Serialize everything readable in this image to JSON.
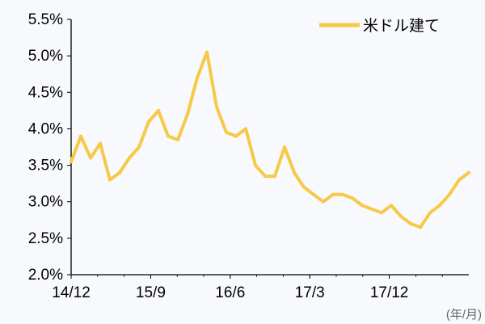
{
  "chart_data": {
    "type": "line",
    "x_unit_label": "(年/月)",
    "x_ticks": [
      "14/12",
      "15/9",
      "16/6",
      "17/3",
      "17/12"
    ],
    "y_ticks": [
      "5.5%",
      "5.0%",
      "4.5%",
      "4.0%",
      "3.5%",
      "3.0%",
      "2.5%",
      "2.0%"
    ],
    "ylim": [
      2.0,
      5.5
    ],
    "xlim": [
      "2014-12",
      "2018-05"
    ],
    "grid": false,
    "legend_position": "top-right",
    "series": [
      {
        "name": "米ドル建て",
        "color": "#f7c948",
        "x": [
          "2014-12",
          "2015-01",
          "2015-02",
          "2015-03",
          "2015-04",
          "2015-05",
          "2015-06",
          "2015-07",
          "2015-08",
          "2015-09",
          "2015-10",
          "2015-11",
          "2015-12",
          "2016-01",
          "2016-02",
          "2016-03",
          "2016-04",
          "2016-05",
          "2016-06",
          "2016-07",
          "2016-08",
          "2016-09",
          "2016-10",
          "2016-11",
          "2016-12",
          "2017-01",
          "2017-02",
          "2017-03",
          "2017-04",
          "2017-05",
          "2017-06",
          "2017-07",
          "2017-08",
          "2017-09",
          "2017-10",
          "2017-11",
          "2017-12",
          "2018-01",
          "2018-02",
          "2018-03",
          "2018-04",
          "2018-05"
        ],
        "values": [
          3.55,
          3.9,
          3.6,
          3.8,
          3.3,
          3.4,
          3.6,
          3.75,
          4.1,
          4.25,
          3.9,
          3.85,
          4.2,
          4.7,
          5.05,
          4.3,
          3.95,
          3.9,
          4.0,
          3.5,
          3.35,
          3.35,
          3.75,
          3.4,
          3.2,
          3.1,
          3.0,
          3.1,
          3.1,
          3.05,
          2.95,
          2.9,
          2.85,
          2.95,
          2.8,
          2.7,
          2.65,
          2.85,
          2.95,
          3.1,
          3.3,
          3.4
        ]
      }
    ]
  }
}
